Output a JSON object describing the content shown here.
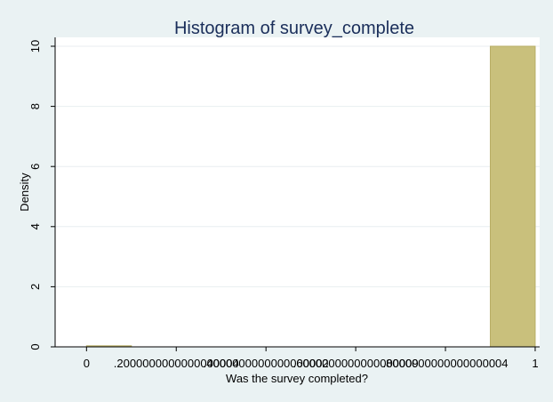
{
  "chart_data": {
    "type": "bar",
    "title": "Histogram of survey_complete",
    "xlabel": "Was the survey completed?",
    "ylabel": "Density",
    "x_ticks": [
      "0",
      ".2000000000000000004",
      ".4000000000000000002",
      ".6000000000000000009",
      ".8000000000000000004",
      "1"
    ],
    "x_tick_values": [
      0,
      0.2,
      0.4,
      0.6,
      0.8,
      1
    ],
    "y_ticks": [
      0,
      2,
      4,
      6,
      8,
      10
    ],
    "xlim": [
      -0.07,
      1.01
    ],
    "ylim": [
      0,
      10
    ],
    "grid": true,
    "bins": [
      {
        "start": 0.0,
        "end": 0.1,
        "value": 0
      },
      {
        "start": 0.9,
        "end": 1.0,
        "value": 10
      }
    ],
    "colors": {
      "bar_fill": "#c9c07c",
      "bar_stroke": "#b8ae66",
      "background": "#eaf2f3",
      "plot_bg": "#ffffff",
      "title": "#1a2e5a",
      "grid": "#e8eef0"
    }
  }
}
